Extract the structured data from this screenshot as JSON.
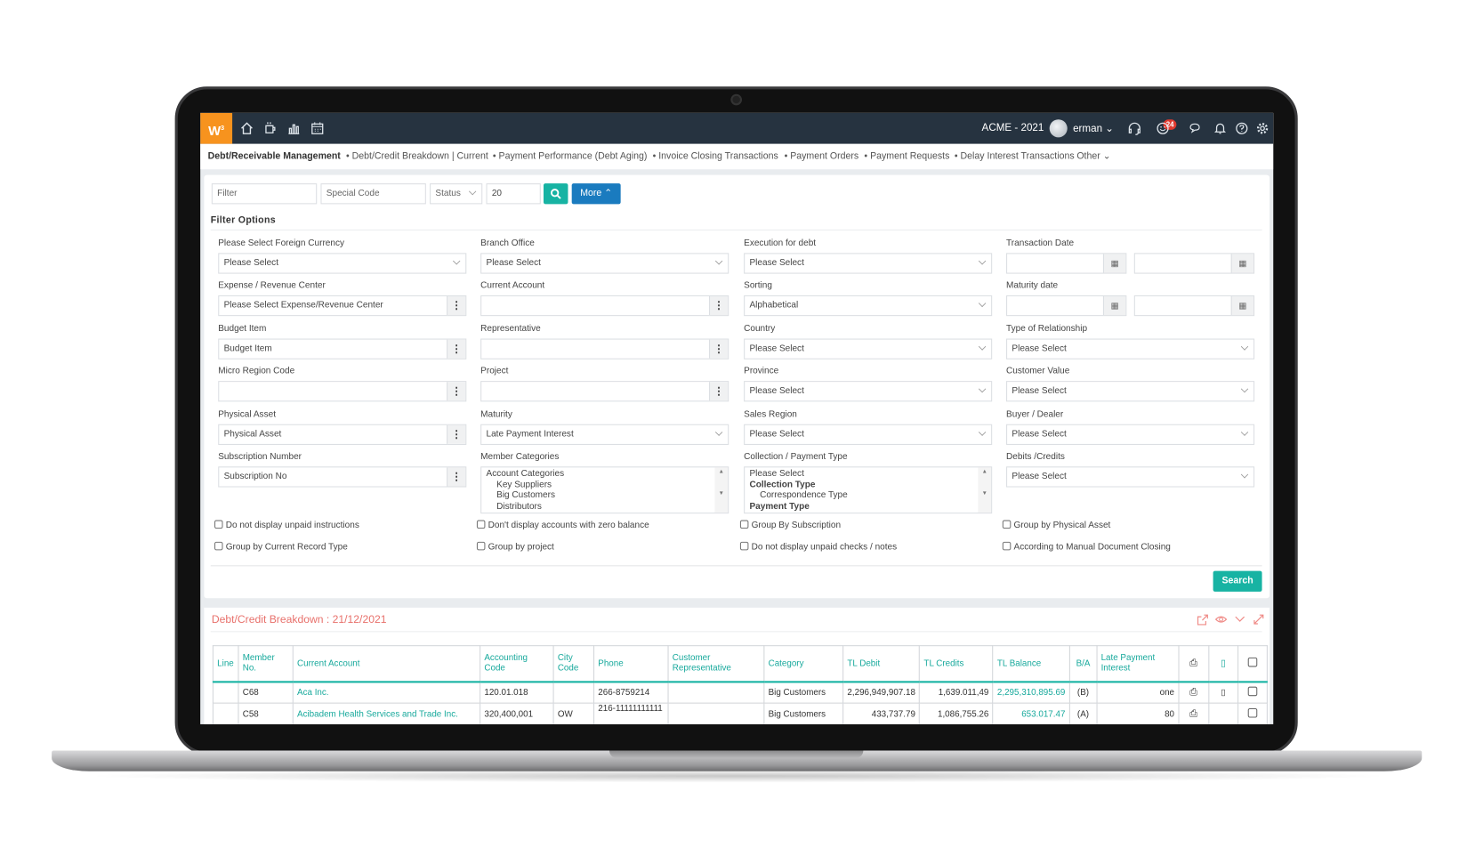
{
  "topbar": {
    "logo": "W³",
    "company": "ACME - 2021",
    "user": "erman",
    "notifications": "24",
    "left_icons": [
      "home-icon",
      "coffee-icon",
      "bar-chart-icon",
      "calendar-icon"
    ],
    "right_icons": [
      "headset-icon",
      "smiley-icon",
      "chat-icon",
      "bell-icon",
      "help-icon",
      "gear-icon"
    ]
  },
  "nav": {
    "items": [
      "Debt/Receivable Management",
      "Debt/Credit Breakdown | Current",
      "Payment Performance (Debt Aging)",
      "Invoice Closing Transactions",
      "Payment Orders",
      "Payment Requests",
      "Delay Interest Transactions"
    ],
    "other": "Other"
  },
  "filterbar": {
    "filter_placeholder": "Filter",
    "special_code_placeholder": "Special Code",
    "status": "Status",
    "page_size": "20",
    "more": "More"
  },
  "filter_options": {
    "title": "Filter Options",
    "columns": [
      [
        {
          "label": "Please Select Foreign Currency",
          "type": "select",
          "value": "Please Select"
        },
        {
          "label": "Expense / Revenue Center",
          "type": "lookup",
          "value": "Please Select Expense/Revenue Center"
        },
        {
          "label": "Budget Item",
          "type": "lookup",
          "value": "Budget Item"
        },
        {
          "label": "Micro Region Code",
          "type": "lookup",
          "value": ""
        },
        {
          "label": "Physical Asset",
          "type": "lookup",
          "value": "Physical Asset"
        },
        {
          "label": "Subscription Number",
          "type": "lookup",
          "value": "Subscription No"
        }
      ],
      [
        {
          "label": "Branch Office",
          "type": "select",
          "value": "Please Select"
        },
        {
          "label": "Current Account",
          "type": "lookup",
          "value": ""
        },
        {
          "label": "Representative",
          "type": "lookup",
          "value": ""
        },
        {
          "label": "Project",
          "type": "lookup",
          "value": ""
        },
        {
          "label": "Maturity",
          "type": "select",
          "value": "Late Payment Interest"
        },
        {
          "label": "Member Categories",
          "type": "list",
          "options": [
            {
              "text": "Account Categories"
            },
            {
              "text": "Key Suppliers",
              "indent": true
            },
            {
              "text": "Big Customers",
              "indent": true
            },
            {
              "text": "Distributors",
              "indent": true
            }
          ]
        }
      ],
      [
        {
          "label": "Execution for debt",
          "type": "select",
          "value": "Please Select"
        },
        {
          "label": "Sorting",
          "type": "select",
          "value": "Alphabetical"
        },
        {
          "label": "Country",
          "type": "select",
          "value": "Please Select"
        },
        {
          "label": "Province",
          "type": "select",
          "value": "Please Select"
        },
        {
          "label": "Sales Region",
          "type": "select",
          "value": "Please Select"
        },
        {
          "label": "Collection / Payment Type",
          "type": "list",
          "options": [
            {
              "text": "Please Select"
            },
            {
              "text": "Collection Type",
              "bold": true
            },
            {
              "text": "Correspondence Type",
              "indent": true
            },
            {
              "text": "Payment Type",
              "bold": true
            }
          ]
        }
      ],
      [
        {
          "label": "Transaction Date",
          "type": "daterange",
          "value": ""
        },
        {
          "label": "Maturity date",
          "type": "daterange",
          "value": ""
        },
        {
          "label": "Type of Relationship",
          "type": "select",
          "value": "Please Select"
        },
        {
          "label": "Customer Value",
          "type": "select",
          "value": "Please Select"
        },
        {
          "label": "Buyer / Dealer",
          "type": "select",
          "value": "Please Select"
        },
        {
          "label": "Debits /Credits",
          "type": "select",
          "value": "Please Select"
        }
      ]
    ],
    "checkboxes": [
      [
        "Do not display unpaid instructions",
        "Group by Current Record Type"
      ],
      [
        "Don't display accounts with zero balance",
        "Group by project"
      ],
      [
        "Group By Subscription",
        "Do not display unpaid checks / notes"
      ],
      [
        "Group by Physical Asset",
        "According to Manual Document Closing"
      ]
    ],
    "search": "Search"
  },
  "results": {
    "title": "Debt/Credit Breakdown : 21/12/2021",
    "icons": [
      "export-icon",
      "eye-icon",
      "chevron-down-icon",
      "expand-icon"
    ],
    "columns": [
      "Line",
      "Member No.",
      "Current Account",
      "Accounting Code",
      "City Code",
      "Phone",
      "Customer Representative",
      "Category",
      "TL Debit",
      "TL Credits",
      "TL Balance",
      "B/A",
      "Late Payment Interest"
    ],
    "rows": [
      [
        "",
        "C68",
        "Aca Inc.",
        "120.01.018",
        "",
        "266-8759214",
        "",
        "Big Customers",
        "2,296,949,907.18",
        "1,639.011,49",
        "2,295,310,895.69",
        "(B)",
        "one"
      ],
      [
        "",
        "C58",
        "Acibadem Health Services and Trade Inc.",
        "320,400,001",
        "OW",
        "216-11111111111",
        "",
        "Big Customers",
        "433,737.79",
        "1,086,755.26",
        "653.017.47",
        "(A)",
        "80"
      ]
    ],
    "colors": {
      "teal": "#17b3a3",
      "title": "#e8716c",
      "topbar": "#263340",
      "logo": "#f7931e",
      "more": "#1a7bbf"
    }
  }
}
